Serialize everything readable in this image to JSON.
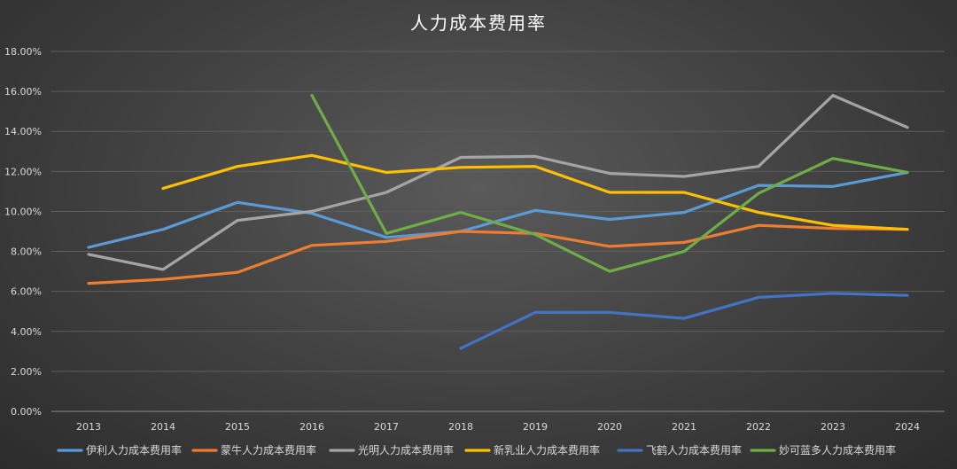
{
  "chart_data": {
    "type": "line",
    "title": "人力成本费用率",
    "xlabel": "",
    "ylabel": "",
    "categories": [
      "2013",
      "2014",
      "2015",
      "2016",
      "2017",
      "2018",
      "2019",
      "2020",
      "2021",
      "2022",
      "2023",
      "2024"
    ],
    "yticks": [
      "0.00%",
      "2.00%",
      "4.00%",
      "6.00%",
      "8.00%",
      "10.00%",
      "12.00%",
      "14.00%",
      "16.00%",
      "18.00%"
    ],
    "ylim": [
      0,
      18
    ],
    "grid": true,
    "legend_position": "bottom",
    "series": [
      {
        "name": "伊利人力成本费用率",
        "color": "#5b9bd5",
        "values": [
          8.2,
          9.1,
          10.45,
          9.9,
          8.7,
          9.0,
          10.05,
          9.6,
          9.95,
          11.3,
          11.25,
          11.95
        ]
      },
      {
        "name": "蒙牛人力成本费用率",
        "color": "#ed7d31",
        "values": [
          6.4,
          6.6,
          6.95,
          8.3,
          8.5,
          9.0,
          8.9,
          8.25,
          8.45,
          9.3,
          9.15,
          9.1
        ]
      },
      {
        "name": "光明人力成本费用率",
        "color": "#a5a5a5",
        "values": [
          7.85,
          7.1,
          9.55,
          10.0,
          10.95,
          12.7,
          12.75,
          11.9,
          11.75,
          12.25,
          15.8,
          14.2
        ]
      },
      {
        "name": "新乳业人力成本费用率",
        "color": "#ffc000",
        "values": [
          null,
          11.15,
          12.25,
          12.8,
          11.95,
          12.2,
          12.25,
          10.95,
          10.95,
          9.95,
          9.3,
          9.1
        ]
      },
      {
        "name": "飞鹤人力成本费用率",
        "color": "#4472c4",
        "values": [
          null,
          null,
          null,
          null,
          null,
          3.15,
          4.95,
          4.95,
          4.65,
          5.7,
          5.9,
          5.8
        ]
      },
      {
        "name": "妙可蓝多人力成本费用率",
        "color": "#70ad47",
        "values": [
          null,
          null,
          null,
          15.8,
          8.9,
          9.95,
          8.85,
          7.0,
          8.0,
          10.9,
          12.65,
          11.95
        ]
      }
    ]
  }
}
